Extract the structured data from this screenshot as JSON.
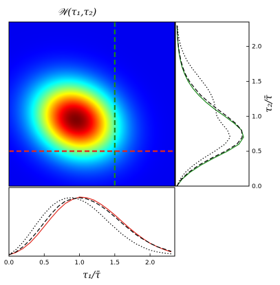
{
  "chart_data": [
    {
      "panel": "joint-heatmap",
      "type": "heatmap",
      "title": "𝒲(τ₁,τ₂)",
      "x_range": [
        0.0,
        2.35
      ],
      "y_range": [
        0.0,
        2.35
      ],
      "colormap": "jet",
      "peak": {
        "x": 0.95,
        "y": 0.95
      },
      "spread": {
        "x": 0.4,
        "y": 0.36
      },
      "correlation": -0.18,
      "vertical_line": {
        "x": 1.5,
        "color": "#1a8a1a",
        "style": "dashed"
      },
      "horizontal_line": {
        "y": 0.5,
        "color": "#e0281e",
        "style": "dashed"
      }
    },
    {
      "panel": "marginal-right",
      "type": "line",
      "ylabel": "τ₂/τ̄",
      "ylim": [
        0.0,
        2.35
      ],
      "yticks": [
        "0.0",
        "0.5",
        "1.0",
        "1.5",
        "2.0"
      ],
      "series": [
        {
          "style": "solid",
          "color": "#1a8a1a",
          "y": [
            0.0,
            0.1,
            0.2,
            0.3,
            0.4,
            0.5,
            0.6,
            0.7,
            0.8,
            0.9,
            1.0,
            1.1,
            1.2,
            1.3,
            1.4,
            1.5,
            1.6,
            1.7,
            1.8,
            1.9,
            2.0,
            2.1,
            2.2,
            2.3
          ],
          "values": [
            0.0,
            0.08,
            0.2,
            0.36,
            0.55,
            0.76,
            0.93,
            1.0,
            0.97,
            0.86,
            0.72,
            0.57,
            0.44,
            0.33,
            0.24,
            0.17,
            0.12,
            0.08,
            0.055,
            0.035,
            0.022,
            0.013,
            0.007,
            0.003
          ]
        },
        {
          "style": "dashed",
          "color": "#000000",
          "y": [
            0.0,
            0.1,
            0.2,
            0.3,
            0.4,
            0.5,
            0.6,
            0.7,
            0.8,
            0.9,
            1.0,
            1.1,
            1.2,
            1.3,
            1.4,
            1.5,
            1.6,
            1.7,
            1.8,
            1.9,
            2.0,
            2.1,
            2.2,
            2.3
          ],
          "values": [
            0.0,
            0.07,
            0.18,
            0.33,
            0.52,
            0.73,
            0.9,
            0.98,
            0.97,
            0.88,
            0.75,
            0.61,
            0.48,
            0.36,
            0.27,
            0.19,
            0.13,
            0.09,
            0.06,
            0.04,
            0.025,
            0.015,
            0.008,
            0.004
          ]
        },
        {
          "style": "dotted",
          "color": "#000000",
          "y": [
            0.0,
            0.1,
            0.2,
            0.3,
            0.4,
            0.5,
            0.6,
            0.7,
            0.8,
            0.9,
            1.0,
            1.1,
            1.2,
            1.3,
            1.4,
            1.5,
            1.6,
            1.7,
            1.8,
            1.9,
            2.0,
            2.1,
            2.2,
            2.3
          ],
          "values": [
            0.0,
            0.05,
            0.13,
            0.25,
            0.4,
            0.57,
            0.72,
            0.8,
            0.76,
            0.67,
            0.6,
            0.58,
            0.56,
            0.52,
            0.46,
            0.38,
            0.3,
            0.22,
            0.15,
            0.1,
            0.06,
            0.035,
            0.018,
            0.008
          ]
        }
      ]
    },
    {
      "panel": "marginal-bottom",
      "type": "line",
      "xlabel": "τ₁/τ̄",
      "xlim": [
        0.0,
        2.35
      ],
      "xticks": [
        "0.0",
        "0.5",
        "1.0",
        "1.5",
        "2.0"
      ],
      "series": [
        {
          "style": "solid",
          "color": "#e0281e",
          "x": [
            0.0,
            0.1,
            0.2,
            0.3,
            0.4,
            0.5,
            0.6,
            0.7,
            0.8,
            0.9,
            1.0,
            1.1,
            1.2,
            1.3,
            1.4,
            1.5,
            1.6,
            1.7,
            1.8,
            1.9,
            2.0,
            2.1,
            2.2,
            2.3
          ],
          "values": [
            0.0,
            0.04,
            0.11,
            0.21,
            0.34,
            0.49,
            0.64,
            0.78,
            0.89,
            0.96,
            1.0,
            0.99,
            0.95,
            0.88,
            0.79,
            0.69,
            0.58,
            0.47,
            0.37,
            0.28,
            0.2,
            0.14,
            0.09,
            0.05
          ]
        },
        {
          "style": "dashed",
          "color": "#000000",
          "x": [
            0.0,
            0.1,
            0.2,
            0.3,
            0.4,
            0.5,
            0.6,
            0.7,
            0.8,
            0.9,
            1.0,
            1.1,
            1.2,
            1.3,
            1.4,
            1.5,
            1.6,
            1.7,
            1.8,
            1.9,
            2.0,
            2.1,
            2.2,
            2.3
          ],
          "values": [
            0.0,
            0.05,
            0.14,
            0.26,
            0.4,
            0.56,
            0.71,
            0.84,
            0.93,
            0.97,
            0.99,
            0.97,
            0.92,
            0.85,
            0.76,
            0.66,
            0.55,
            0.45,
            0.35,
            0.27,
            0.2,
            0.14,
            0.1,
            0.06
          ]
        },
        {
          "style": "dotted",
          "color": "#000000",
          "x": [
            0.0,
            0.1,
            0.2,
            0.3,
            0.4,
            0.5,
            0.6,
            0.7,
            0.8,
            0.9,
            1.0,
            1.1,
            1.2,
            1.3,
            1.4,
            1.5,
            1.6,
            1.7,
            1.8,
            1.9,
            2.0,
            2.1,
            2.2,
            2.3
          ],
          "values": [
            0.0,
            0.09,
            0.22,
            0.38,
            0.55,
            0.71,
            0.84,
            0.93,
            0.98,
            0.99,
            0.96,
            0.9,
            0.81,
            0.7,
            0.58,
            0.47,
            0.36,
            0.27,
            0.19,
            0.13,
            0.08,
            0.05,
            0.03,
            0.015
          ]
        }
      ]
    }
  ]
}
